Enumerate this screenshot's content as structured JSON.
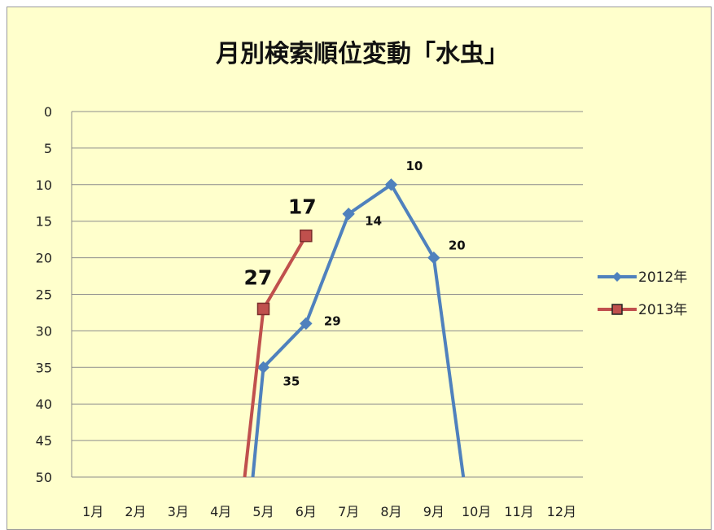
{
  "chart_data": {
    "type": "line",
    "title": "月別検索順位変動「水虫」",
    "categories": [
      "1月",
      "2月",
      "3月",
      "4月",
      "5月",
      "6月",
      "7月",
      "8月",
      "9月",
      "10月",
      "11月",
      "12月"
    ],
    "y_ticks": [
      0,
      5,
      10,
      15,
      20,
      25,
      30,
      35,
      40,
      45,
      50
    ],
    "ylim": [
      50,
      0
    ],
    "y_inverted": true,
    "grid": true,
    "legend_position": "right",
    "series": [
      {
        "name": "2012年",
        "color": "#4f81bd",
        "marker": "diamond",
        "start_value": 50,
        "end_value": 50,
        "points": [
          {
            "month": 5,
            "value": 35,
            "label": "35"
          },
          {
            "month": 6,
            "value": 29,
            "label": "29"
          },
          {
            "month": 7,
            "value": 14,
            "label": "14"
          },
          {
            "month": 8,
            "value": 10,
            "label": "10"
          },
          {
            "month": 9,
            "value": 20,
            "label": "20"
          }
        ]
      },
      {
        "name": "2013年",
        "color": "#c0504d",
        "marker": "square",
        "start_value": 50,
        "points": [
          {
            "month": 5,
            "value": 27,
            "label": "27"
          },
          {
            "month": 6,
            "value": 17,
            "label": "17"
          }
        ]
      }
    ]
  }
}
